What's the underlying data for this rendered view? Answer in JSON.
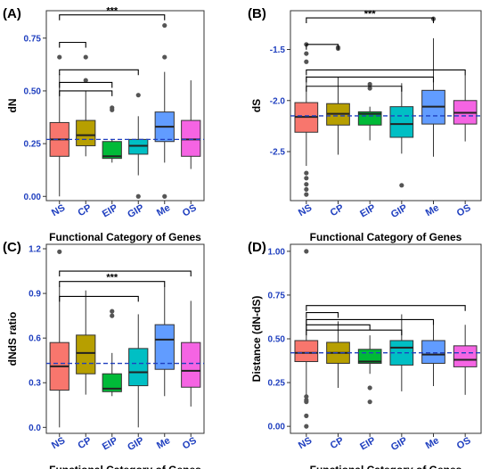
{
  "figure": {
    "categories": [
      "NS",
      "CP",
      "EIP",
      "GIP",
      "Me",
      "OS"
    ],
    "colors": [
      "#f8766d",
      "#b79f00",
      "#00ba38",
      "#00bfc4",
      "#619cff",
      "#f564e3"
    ],
    "reference_line_color": "#1f3fbf"
  },
  "chart_data": [
    {
      "type": "box",
      "label": "(A)",
      "xlabel": "Functional Category of Genes",
      "ylabel": "dN",
      "ylim": [
        -0.02,
        0.88
      ],
      "yticks": [
        0.0,
        0.25,
        0.5,
        0.75
      ],
      "ytick_labels": [
        "0.00",
        "0.25",
        "0.50",
        "0.75"
      ],
      "reference_line": 0.27,
      "categories": [
        "NS",
        "CP",
        "EIP",
        "GIP",
        "Me",
        "OS"
      ],
      "boxes": [
        {
          "lower": 0.0,
          "q1": 0.19,
          "median": 0.27,
          "q3": 0.35,
          "upper": 0.58,
          "outliers": [
            0.66
          ]
        },
        {
          "lower": 0.19,
          "q1": 0.24,
          "median": 0.29,
          "q3": 0.36,
          "upper": 0.5,
          "outliers": [
            0.55,
            0.66
          ]
        },
        {
          "lower": 0.16,
          "q1": 0.18,
          "median": 0.19,
          "q3": 0.26,
          "upper": 0.27,
          "outliers": [
            0.41,
            0.42
          ]
        },
        {
          "lower": 0.1,
          "q1": 0.2,
          "median": 0.24,
          "q3": 0.27,
          "upper": 0.38,
          "outliers": [
            0.0,
            0.48
          ]
        },
        {
          "lower": 0.16,
          "q1": 0.26,
          "median": 0.33,
          "q3": 0.4,
          "upper": 0.59,
          "outliers": [
            0.0,
            0.66,
            0.81
          ]
        },
        {
          "lower": 0.13,
          "q1": 0.19,
          "median": 0.27,
          "q3": 0.36,
          "upper": 0.55,
          "outliers": []
        }
      ],
      "brackets": [
        {
          "from": "NS",
          "to": "Me",
          "y": 0.86,
          "text": "***"
        },
        {
          "from": "NS",
          "to": "CP",
          "y": 0.73,
          "text": ""
        },
        {
          "from": "NS",
          "to": "GIP",
          "y": 0.6,
          "text": ""
        },
        {
          "from": "NS",
          "to": "EIP",
          "y": 0.54,
          "text": ""
        },
        {
          "from": "NS",
          "to": "EIP",
          "y": 0.5,
          "text": ""
        }
      ]
    },
    {
      "type": "box",
      "label": "(B)",
      "xlabel": "Functional Category of Genes",
      "ylabel": "dS",
      "ylim": [
        -2.98,
        -1.12
      ],
      "yticks": [
        -2.5,
        -2.0,
        -1.5
      ],
      "ytick_labels": [
        "-2.5",
        "-2.0",
        "-1.5"
      ],
      "reference_line": -2.15,
      "categories": [
        "NS",
        "CP",
        "EIP",
        "GIP",
        "Me",
        "OS"
      ],
      "boxes": [
        {
          "lower": -2.64,
          "q1": -2.31,
          "median": -2.16,
          "q3": -2.02,
          "upper": -1.76,
          "outliers": [
            -1.45,
            -1.54,
            -1.62,
            -2.71,
            -2.76,
            -2.82,
            -2.87,
            -2.92
          ]
        },
        {
          "lower": -2.53,
          "q1": -2.24,
          "median": -2.13,
          "q3": -2.03,
          "upper": -1.77,
          "outliers": [
            -1.48,
            -1.49
          ]
        },
        {
          "lower": -2.39,
          "q1": -2.24,
          "median": -2.13,
          "q3": -2.11,
          "upper": -2.06,
          "outliers": [
            -1.84,
            -1.88
          ]
        },
        {
          "lower": -2.52,
          "q1": -2.36,
          "median": -2.23,
          "q3": -2.06,
          "upper": -1.83,
          "outliers": [
            -2.83
          ]
        },
        {
          "lower": -2.55,
          "q1": -2.23,
          "median": -2.06,
          "q3": -1.9,
          "upper": -1.39,
          "outliers": [
            -1.2
          ]
        },
        {
          "lower": -2.4,
          "q1": -2.23,
          "median": -2.12,
          "q3": -2.0,
          "upper": -1.75,
          "outliers": []
        }
      ],
      "brackets": [
        {
          "from": "NS",
          "to": "Me",
          "y": -1.19,
          "text": "***"
        },
        {
          "from": "NS",
          "to": "CP",
          "y": -1.45,
          "text": ""
        },
        {
          "from": "NS",
          "to": "OS",
          "y": -1.7,
          "text": ""
        },
        {
          "from": "NS",
          "to": "Me",
          "y": -1.77,
          "text": ""
        },
        {
          "from": "NS",
          "to": "GIP",
          "y": -1.86,
          "text": ""
        }
      ]
    },
    {
      "type": "box",
      "label": "(C)",
      "xlabel": "Functional Category of Genes",
      "ylabel": "dNdS ratio",
      "ylim": [
        -0.04,
        1.23
      ],
      "yticks": [
        0.0,
        0.3,
        0.6,
        0.9,
        1.2
      ],
      "ytick_labels": [
        "0.0",
        "0.3",
        "0.6",
        "0.9",
        "1.2"
      ],
      "reference_line": 0.43,
      "categories": [
        "NS",
        "CP",
        "EIP",
        "GIP",
        "Me",
        "OS"
      ],
      "boxes": [
        {
          "lower": 0.0,
          "q1": 0.25,
          "median": 0.41,
          "q3": 0.57,
          "upper": 0.95,
          "outliers": [
            1.18
          ]
        },
        {
          "lower": 0.22,
          "q1": 0.36,
          "median": 0.5,
          "q3": 0.62,
          "upper": 0.92,
          "outliers": []
        },
        {
          "lower": 0.21,
          "q1": 0.24,
          "median": 0.26,
          "q3": 0.36,
          "upper": 0.5,
          "outliers": [
            0.75,
            0.78
          ]
        },
        {
          "lower": 0.0,
          "q1": 0.28,
          "median": 0.37,
          "q3": 0.53,
          "upper": 0.76,
          "outliers": []
        },
        {
          "lower": 0.21,
          "q1": 0.39,
          "median": 0.59,
          "q3": 0.69,
          "upper": 0.95,
          "outliers": []
        },
        {
          "lower": 0.14,
          "q1": 0.27,
          "median": 0.38,
          "q3": 0.57,
          "upper": 0.85,
          "outliers": []
        }
      ],
      "brackets": [
        {
          "from": "NS",
          "to": "OS",
          "y": 1.05,
          "text": ""
        },
        {
          "from": "NS",
          "to": "Me",
          "y": 0.98,
          "text": "***"
        },
        {
          "from": "NS",
          "to": "GIP",
          "y": 0.88,
          "text": ""
        }
      ]
    },
    {
      "type": "box",
      "label": "(D)",
      "xlabel": "Functional Category of Genes",
      "ylabel": "Distance (dN-dS)",
      "ylim": [
        -0.04,
        1.04
      ],
      "yticks": [
        0.0,
        0.25,
        0.5,
        0.75,
        1.0
      ],
      "ytick_labels": [
        "0.00",
        "0.25",
        "0.50",
        "0.75",
        "1.00"
      ],
      "reference_line": 0.42,
      "categories": [
        "NS",
        "CP",
        "EIP",
        "GIP",
        "Me",
        "OS"
      ],
      "boxes": [
        {
          "lower": 0.18,
          "q1": 0.37,
          "median": 0.42,
          "q3": 0.49,
          "upper": 0.62,
          "outliers": [
            1.0,
            0.17,
            0.15,
            0.14,
            0.06,
            0.0
          ]
        },
        {
          "lower": 0.22,
          "q1": 0.36,
          "median": 0.42,
          "q3": 0.48,
          "upper": 0.6,
          "outliers": []
        },
        {
          "lower": 0.3,
          "q1": 0.36,
          "median": 0.37,
          "q3": 0.44,
          "upper": 0.52,
          "outliers": [
            0.22,
            0.14
          ]
        },
        {
          "lower": 0.2,
          "q1": 0.35,
          "median": 0.45,
          "q3": 0.49,
          "upper": 0.64,
          "outliers": []
        },
        {
          "lower": 0.23,
          "q1": 0.36,
          "median": 0.41,
          "q3": 0.49,
          "upper": 0.6,
          "outliers": []
        },
        {
          "lower": 0.18,
          "q1": 0.34,
          "median": 0.38,
          "q3": 0.46,
          "upper": 0.58,
          "outliers": []
        }
      ],
      "brackets": [
        {
          "from": "NS",
          "to": "OS",
          "y": 0.69,
          "text": ""
        },
        {
          "from": "NS",
          "to": "CP",
          "y": 0.65,
          "text": ""
        },
        {
          "from": "NS",
          "to": "Me",
          "y": 0.61,
          "text": ""
        },
        {
          "from": "NS",
          "to": "EIP",
          "y": 0.58,
          "text": ""
        },
        {
          "from": "NS",
          "to": "GIP",
          "y": 0.55,
          "text": ""
        }
      ]
    }
  ]
}
